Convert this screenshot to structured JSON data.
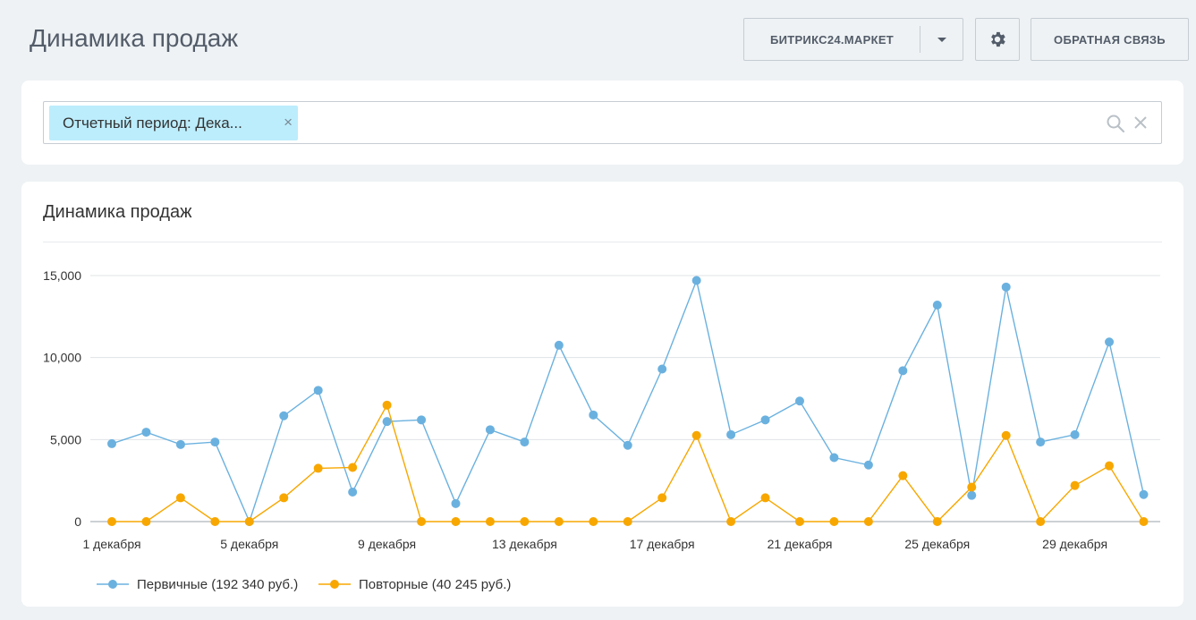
{
  "page": {
    "title": "Динамика продаж"
  },
  "toolbar": {
    "market_label": "БИТРИКС24.МАРКЕТ",
    "settings_icon": "gear-icon",
    "feedback_label": "ОБРАТНАЯ СВЯЗЬ"
  },
  "filter": {
    "chip_label": "Отчетный период: Дека...",
    "chip_close": "×",
    "search_icon": "search-icon",
    "clear_icon": "close-icon"
  },
  "colors": {
    "primary": "#6bb1df",
    "repeat": "#f7a700",
    "accent_chip": "#bcedfc"
  },
  "chart_data": {
    "type": "line",
    "title": "Динамика продаж",
    "x": [
      1,
      2,
      3,
      4,
      5,
      6,
      7,
      8,
      9,
      10,
      11,
      12,
      13,
      14,
      15,
      16,
      17,
      18,
      19,
      20,
      21,
      22,
      23,
      24,
      25,
      26,
      27,
      28,
      29,
      30,
      31
    ],
    "x_tick_labels": [
      "1 декабря",
      "5 декабря",
      "9 декабря",
      "13 декабря",
      "17 декабря",
      "21 декабря",
      "25 декабря",
      "29 декабря"
    ],
    "x_tick_positions": [
      1,
      5,
      9,
      13,
      17,
      21,
      25,
      29
    ],
    "y_ticks": [
      0,
      5000,
      10000,
      15000
    ],
    "y_tick_labels": [
      "0",
      "5,000",
      "10,000",
      "15,000"
    ],
    "ylim": [
      0,
      16500
    ],
    "grid": true,
    "legend_position": "bottom-left",
    "series": [
      {
        "name": "Первичные (192 340 руб.)",
        "color": "#6bb1df",
        "values": [
          4750,
          5450,
          4700,
          4850,
          0,
          6450,
          8000,
          1800,
          6100,
          6200,
          1100,
          5600,
          4850,
          10750,
          6500,
          4650,
          9300,
          14700,
          5300,
          6200,
          7350,
          3900,
          3450,
          9200,
          13200,
          1600,
          14300,
          4850,
          5300,
          10950,
          1650
        ]
      },
      {
        "name": "Повторные (40 245 руб.)",
        "color": "#f7a700",
        "values": [
          0,
          0,
          1450,
          0,
          0,
          1450,
          3250,
          3300,
          7100,
          0,
          0,
          0,
          0,
          0,
          0,
          0,
          1450,
          5250,
          0,
          1450,
          0,
          0,
          0,
          2800,
          0,
          2100,
          5250,
          0,
          2200,
          3400,
          0
        ]
      }
    ]
  }
}
